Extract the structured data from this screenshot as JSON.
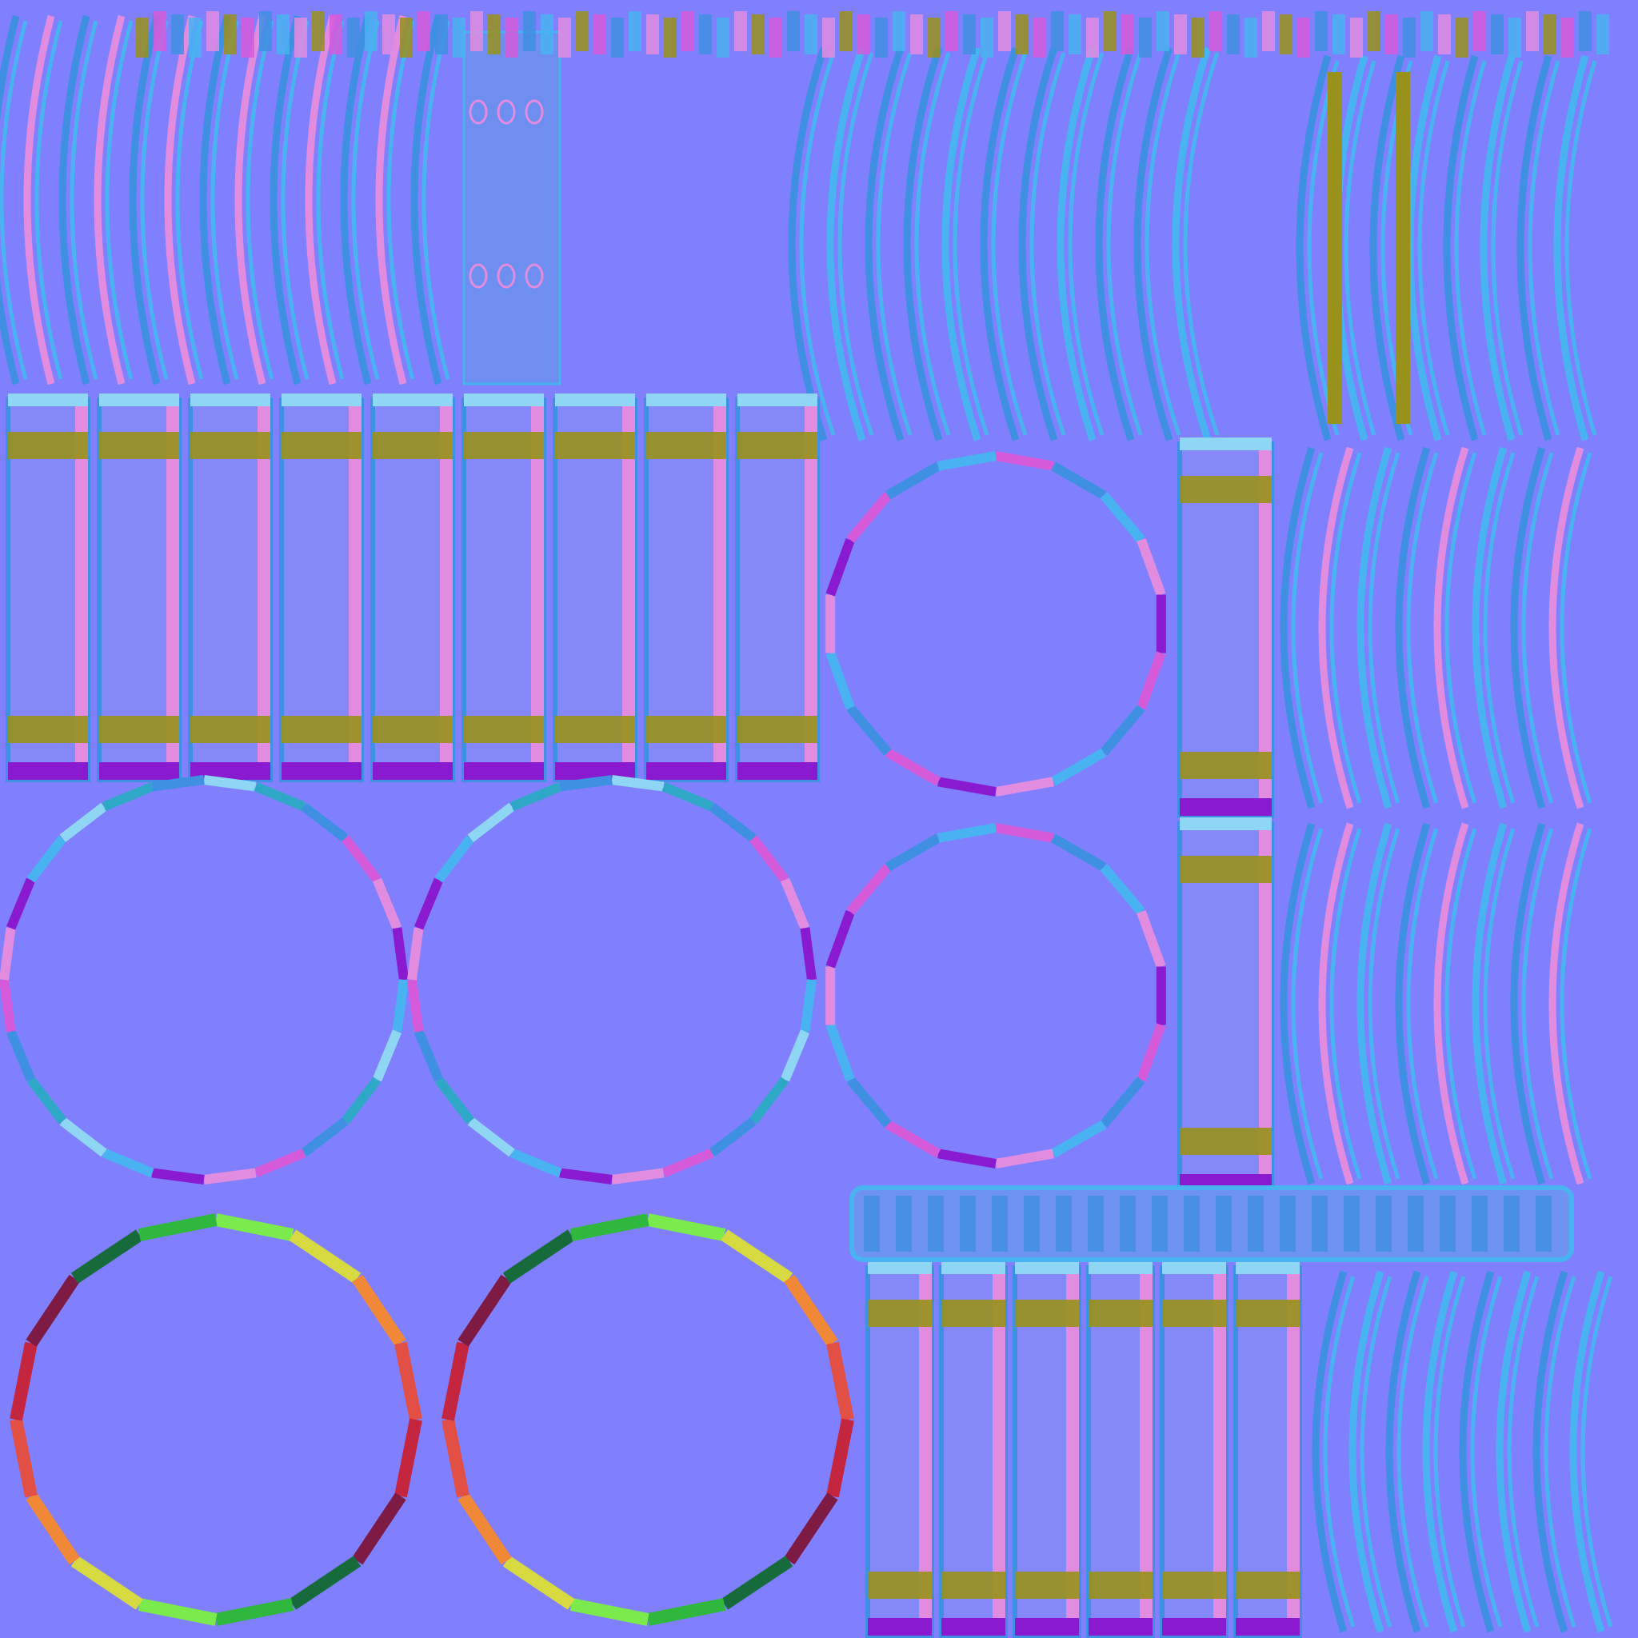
{
  "texture": {
    "kind": "tangent-space normal map",
    "base_color": "#8080fe",
    "palette": {
      "cyan": "#49b2f0",
      "blue": "#3f8fe3",
      "pink": "#e28ce0",
      "magenta": "#d55ad9",
      "purple": "#8a1ad0",
      "olive": "#98911b",
      "teal": "#2fa7c7",
      "lightblue": "#8fd6f5",
      "green": "#30b73e",
      "darkgreen": "#166a3c",
      "lime": "#7bea4c",
      "yellow": "#d6da40",
      "orange": "#f08838",
      "red": "#e14f45",
      "crimson": "#c4253f",
      "maroon": "#7d1b44"
    }
  }
}
